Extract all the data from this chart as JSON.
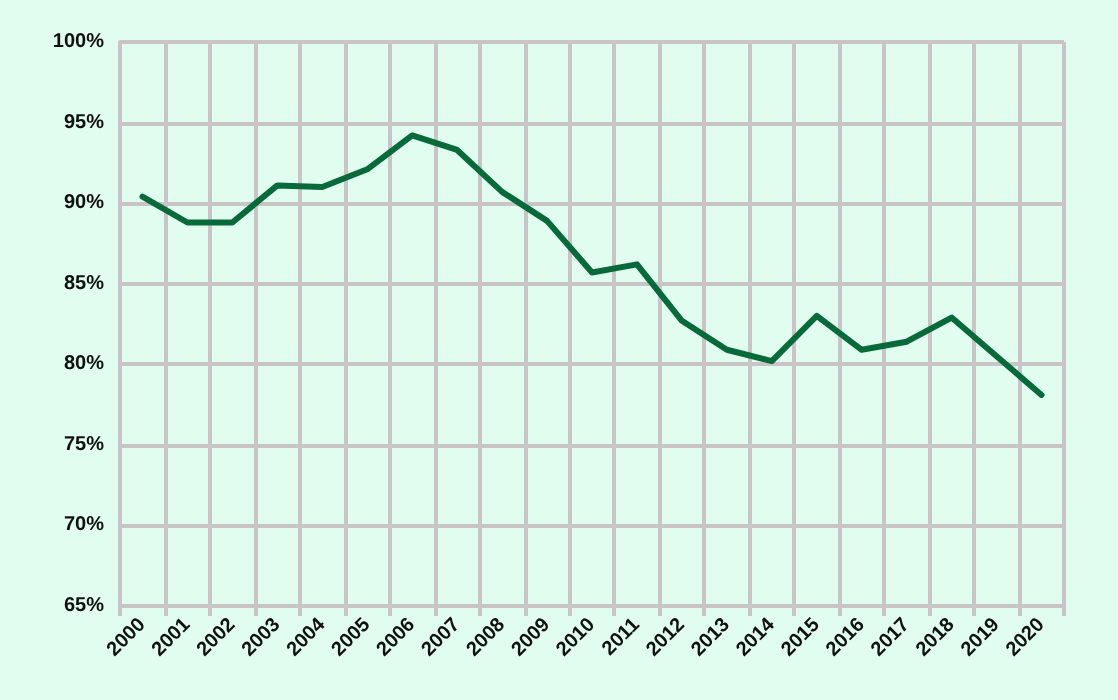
{
  "chart_data": {
    "type": "line",
    "categories": [
      "2000",
      "2001",
      "2002",
      "2003",
      "2004",
      "2005",
      "2006",
      "2007",
      "2008",
      "2009",
      "2010",
      "2011",
      "2012",
      "2013",
      "2014",
      "2015",
      "2016",
      "2017",
      "2018",
      "2019",
      "2020"
    ],
    "series": [
      {
        "color": "#086a3a",
        "values": [
          90.4,
          88.8,
          88.8,
          91.1,
          91.0,
          92.1,
          94.2,
          93.3,
          90.7,
          88.9,
          85.7,
          86.2,
          82.7,
          80.9,
          80.2,
          83.0,
          80.9,
          81.4,
          82.9,
          80.5,
          78.1
        ]
      }
    ],
    "ylim": [
      65,
      100
    ],
    "yticks": [
      {
        "value": 65,
        "label": "65%"
      },
      {
        "value": 70,
        "label": "70%"
      },
      {
        "value": 75,
        "label": "75%"
      },
      {
        "value": 80,
        "label": "80%"
      },
      {
        "value": 85,
        "label": "85%"
      },
      {
        "value": 90,
        "label": "90%"
      },
      {
        "value": 95,
        "label": "95%"
      },
      {
        "value": 100,
        "label": "100%"
      }
    ],
    "grid": true,
    "marker": "none",
    "line_style": "solid"
  }
}
